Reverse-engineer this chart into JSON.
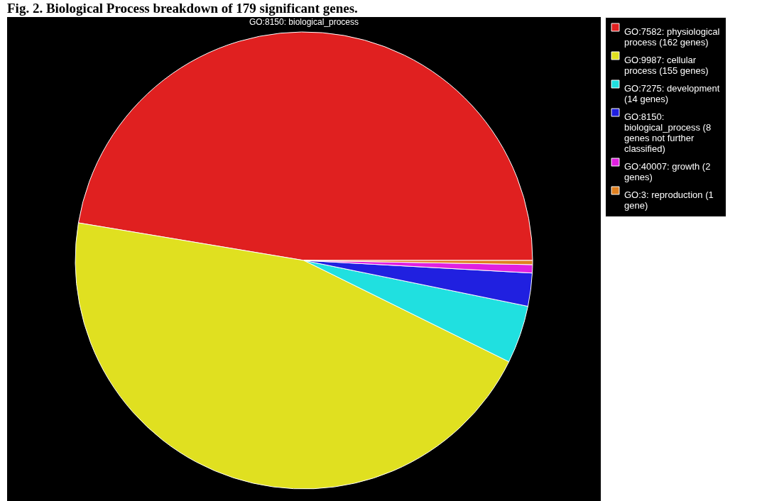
{
  "chart_data": {
    "type": "pie",
    "title": "Fig. 2. Biological Process breakdown of 179 significant genes.",
    "subtitle": "GO:8150: biological_process",
    "categories": [
      "GO:7582: physiological process (162 genes)",
      "GO:9987: cellular process (155 genes)",
      "GO:7275: development (14 genes)",
      "GO:8150: biological_process (8 genes not further classified)",
      "GO:40007: growth (2 genes)",
      "GO:3: reproduction (1 gene)"
    ],
    "values": [
      162,
      155,
      14,
      8,
      2,
      1
    ],
    "colors": [
      "#e02020",
      "#e0e020",
      "#20e0e0",
      "#2020e0",
      "#e020e0",
      "#e08020"
    ],
    "legend": "right"
  }
}
